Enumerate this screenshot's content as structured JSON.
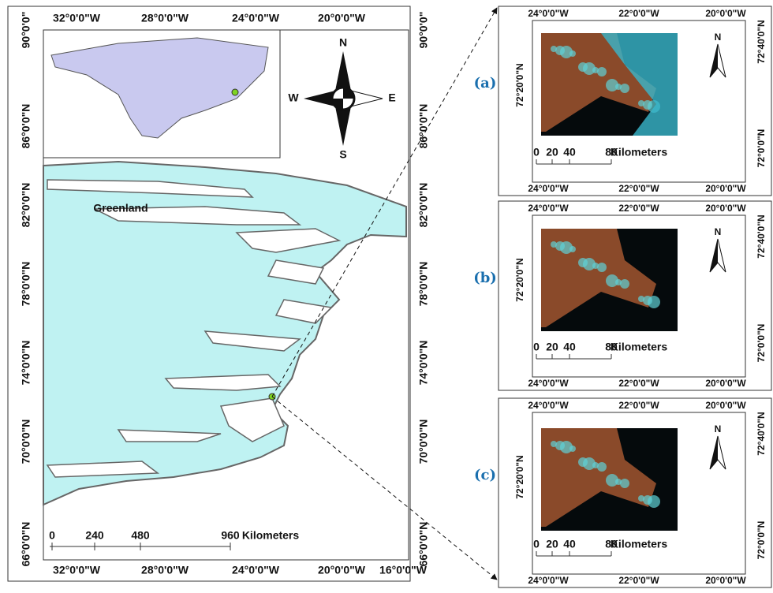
{
  "main_map": {
    "top_labels": [
      "32°0'0\"W",
      "28°0'0\"W",
      "24°0'0\"W",
      "20°0'0\"W"
    ],
    "bottom_labels": [
      "32°0'0\"W",
      "28°0'0\"W",
      "24°0'0\"W",
      "20°0'0\"W",
      "16°0'0\"W"
    ],
    "left_labels": [
      "90°0'0\"",
      "86°0'0\"N",
      "82°0'0\"N",
      "78°0'0\"N",
      "74°0'0\"N",
      "70°0'0\"N",
      "66°0'0\"N"
    ],
    "right_labels": [
      "90°0'0\"",
      "86°0'0\"N",
      "82°0'0\"N",
      "78°0'0\"N",
      "74°0'0\"N",
      "70°0'0\"N",
      "66°0'0\"N"
    ],
    "place_label": "Greenland",
    "compass": {
      "north": "N",
      "south": "S",
      "east": "E",
      "west": "W"
    },
    "scale": {
      "ticks": [
        "0",
        "240",
        "480",
        "960"
      ],
      "unit": "Kilometers"
    }
  },
  "panels": [
    {
      "label": "(a)",
      "top_labels": [
        "24°0'0\"W",
        "22°0'0\"W",
        "20°0'0\"W"
      ],
      "bottom_labels": [
        "24°0'0\"W",
        "22°0'0\"W",
        "20°0'0\"W"
      ],
      "left_labels": [
        "72°20'0\"N"
      ],
      "right_labels": [
        "72°40'0\"N",
        "72°0'0\"N"
      ],
      "north": "N",
      "scale": {
        "ticks": [
          "0",
          "20",
          "40",
          "80"
        ],
        "unit": "Kilometers"
      }
    },
    {
      "label": "(b)",
      "top_labels": [
        "24°0'0\"W",
        "22°0'0\"W",
        "20°0'0\"W"
      ],
      "bottom_labels": [
        "24°0'0\"W",
        "22°0'0\"W",
        "20°0'0\"W"
      ],
      "left_labels": [
        "72°20'0\"N"
      ],
      "right_labels": [
        "72°40'0\"N",
        "72°0'0\"N"
      ],
      "north": "N",
      "scale": {
        "ticks": [
          "0",
          "20",
          "40",
          "80"
        ],
        "unit": "Kilometers"
      }
    },
    {
      "label": "(c)",
      "top_labels": [
        "24°0'0\"W",
        "22°0'0\"W",
        "20°0'0\"W"
      ],
      "bottom_labels": [
        "24°0'0\"W",
        "22°0'0\"W",
        "20°0'0\"W"
      ],
      "left_labels": [
        "72°20'0\"N"
      ],
      "right_labels": [
        "72°40'0\"N",
        "72°0'0\"N"
      ],
      "north": "N",
      "scale": {
        "ticks": [
          "0",
          "20",
          "40",
          "80"
        ],
        "unit": "Kilometers"
      }
    }
  ]
}
